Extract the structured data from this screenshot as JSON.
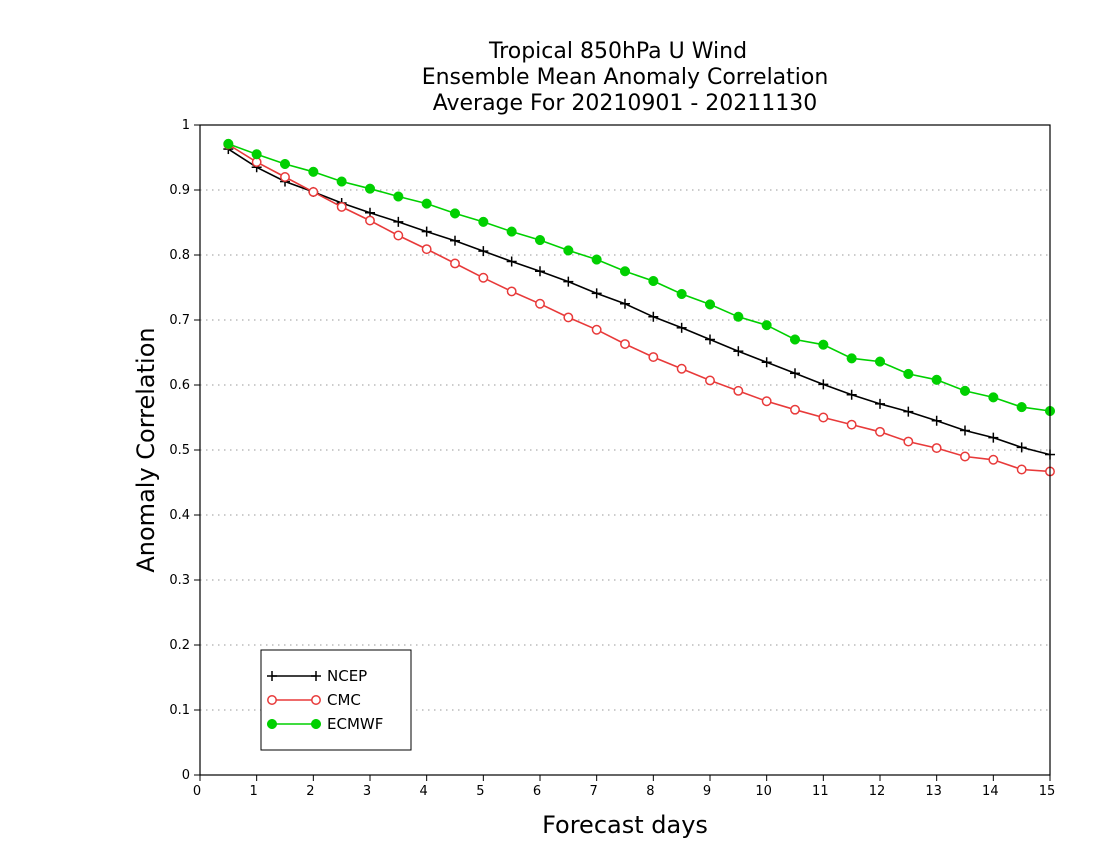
{
  "chart_data": {
    "type": "line",
    "title_lines": [
      "Tropical 850hPa U Wind",
      "Ensemble Mean Anomaly Correlation",
      "Average For 20210901 - 20211130"
    ],
    "xlabel": "Forecast days",
    "ylabel": "Anomaly Correlation",
    "xlim": [
      0,
      15
    ],
    "ylim": [
      0,
      1
    ],
    "xticks": [
      0,
      1,
      2,
      3,
      4,
      5,
      6,
      7,
      8,
      9,
      10,
      11,
      12,
      13,
      14,
      15
    ],
    "xtick_labels": [
      "0",
      "1",
      "2",
      "3",
      "4",
      "5",
      "6",
      "7",
      "8",
      "9",
      "10",
      "11",
      "12",
      "13",
      "14",
      "15"
    ],
    "yticks": [
      0,
      0.1,
      0.2,
      0.3,
      0.4,
      0.5,
      0.6,
      0.7,
      0.8,
      0.9,
      1
    ],
    "ytick_labels": [
      "0",
      "0.1",
      "0.2",
      "0.3",
      "0.4",
      "0.5",
      "0.6",
      "0.7",
      "0.8",
      "0.9",
      "1"
    ],
    "grid": "horizontal dotted",
    "legend_position": "bottom-left",
    "x": [
      0.5,
      1,
      1.5,
      2,
      2.5,
      3,
      3.5,
      4,
      4.5,
      5,
      5.5,
      6,
      6.5,
      7,
      7.5,
      8,
      8.5,
      9,
      9.5,
      10,
      10.5,
      11,
      11.5,
      12,
      12.5,
      13,
      13.5,
      14,
      14.5,
      15
    ],
    "series": [
      {
        "name": "NCEP",
        "color": "#000000",
        "marker": "plus",
        "values": [
          0.963,
          0.935,
          0.913,
          0.897,
          0.88,
          0.865,
          0.851,
          0.836,
          0.822,
          0.806,
          0.79,
          0.775,
          0.759,
          0.741,
          0.725,
          0.705,
          0.688,
          0.67,
          0.652,
          0.635,
          0.618,
          0.601,
          0.585,
          0.571,
          0.559,
          0.545,
          0.53,
          0.519,
          0.504,
          0.493
        ]
      },
      {
        "name": "CMC",
        "color": "#e83a3a",
        "marker": "open-circle",
        "values": [
          0.97,
          0.943,
          0.92,
          0.897,
          0.874,
          0.853,
          0.83,
          0.809,
          0.787,
          0.765,
          0.744,
          0.725,
          0.704,
          0.685,
          0.663,
          0.643,
          0.625,
          0.607,
          0.591,
          0.575,
          0.562,
          0.55,
          0.539,
          0.528,
          0.513,
          0.503,
          0.49,
          0.485,
          0.47,
          0.467
        ]
      },
      {
        "name": "ECMWF",
        "color": "#00d000",
        "marker": "filled-circle",
        "values": [
          0.971,
          0.955,
          0.94,
          0.928,
          0.913,
          0.902,
          0.89,
          0.879,
          0.864,
          0.851,
          0.836,
          0.823,
          0.807,
          0.793,
          0.775,
          0.76,
          0.74,
          0.724,
          0.705,
          0.692,
          0.67,
          0.662,
          0.641,
          0.636,
          0.617,
          0.608,
          0.591,
          0.581,
          0.566,
          0.56
        ]
      }
    ]
  }
}
